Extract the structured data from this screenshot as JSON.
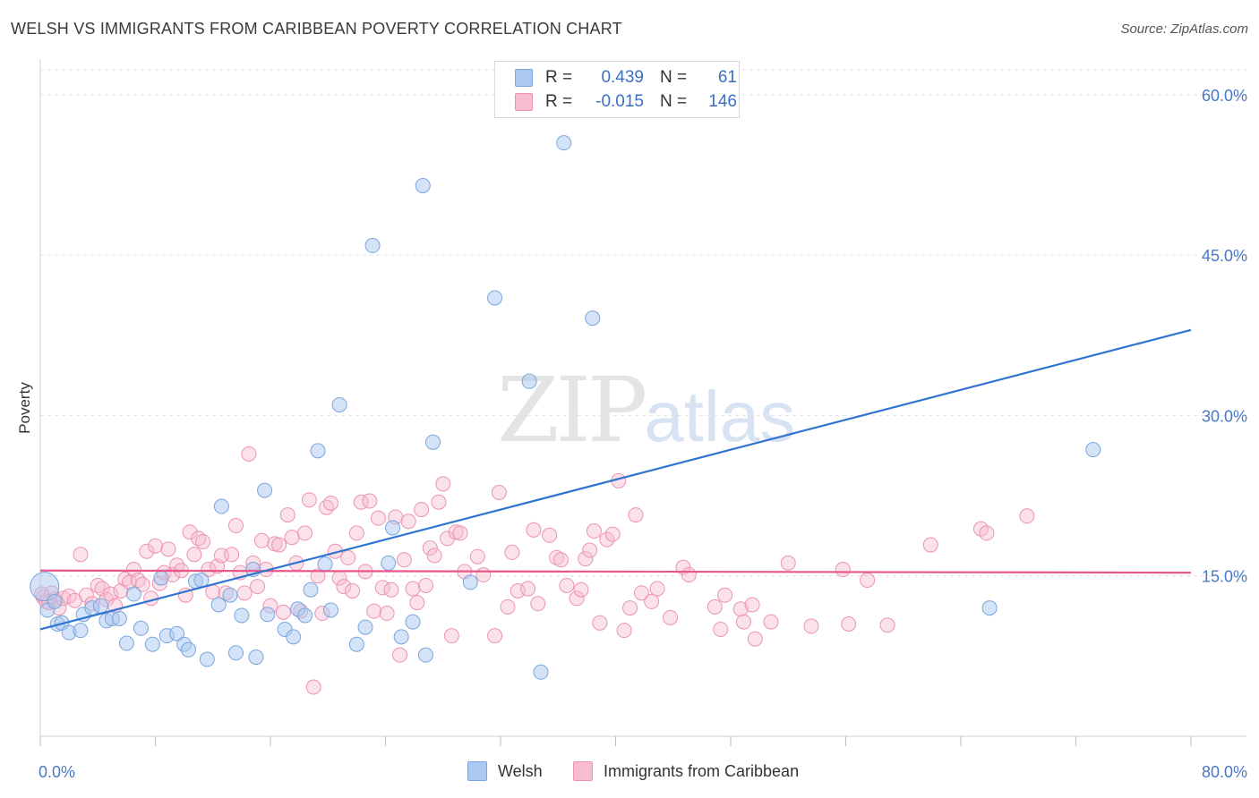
{
  "header": {
    "title": "WELSH VS IMMIGRANTS FROM CARIBBEAN POVERTY CORRELATION CHART",
    "source": "Source: ZipAtlas.com"
  },
  "watermark": {
    "zip": "ZIP",
    "atlas": "atlas"
  },
  "legend": {
    "welsh": {
      "r_label": "R =",
      "r_value": "0.439",
      "n_label": "N =",
      "n_value": "61"
    },
    "caribbean": {
      "r_label": "R =",
      "r_value": "-0.015",
      "n_label": "N =",
      "n_value": "146"
    }
  },
  "bottom_legend": {
    "welsh": "Welsh",
    "caribbean": "Immigrants from Caribbean"
  },
  "colors": {
    "welsh_fill": "#aac8f0",
    "welsh_stroke": "#7aa6de",
    "welsh_line": "#2f74d0",
    "caribbean_fill": "#f7bcd0",
    "caribbean_stroke": "#ec93b2",
    "caribbean_line": "#e8578c",
    "tick_text": "#4a78c4",
    "grid": "#e2e2e2"
  },
  "chart_data": {
    "type": "scatter",
    "title": "WELSH VS IMMIGRANTS FROM CARIBBEAN POVERTY CORRELATION CHART",
    "xlabel": "",
    "ylabel": "Poverty",
    "xlim": [
      0,
      80
    ],
    "ylim": [
      0,
      63
    ],
    "x_tick_labels": [
      "0.0%",
      "80.0%"
    ],
    "y_ticks": [
      15,
      30,
      45,
      60
    ],
    "y_tick_labels": [
      "15.0%",
      "30.0%",
      "45.0%",
      "60.0%"
    ],
    "grid": "horizontal dashed",
    "legend_position": "top-center",
    "series": [
      {
        "name": "Welsh",
        "R": 0.439,
        "N": 61,
        "trend": {
          "x": [
            0,
            80
          ],
          "y": [
            10.0,
            38.0
          ]
        },
        "points": [
          [
            0.3,
            14.0
          ],
          [
            0.5,
            11.8
          ],
          [
            1.2,
            10.5
          ],
          [
            1.5,
            10.6
          ],
          [
            2.0,
            9.7
          ],
          [
            2.8,
            9.9
          ],
          [
            3.0,
            11.4
          ],
          [
            3.6,
            12.0
          ],
          [
            4.2,
            12.2
          ],
          [
            4.6,
            10.8
          ],
          [
            5.0,
            11.0
          ],
          [
            5.5,
            11.0
          ],
          [
            6.0,
            8.7
          ],
          [
            6.5,
            13.3
          ],
          [
            7.0,
            10.1
          ],
          [
            7.8,
            8.6
          ],
          [
            8.4,
            14.8
          ],
          [
            8.8,
            9.4
          ],
          [
            9.5,
            9.6
          ],
          [
            10.0,
            8.6
          ],
          [
            10.3,
            8.1
          ],
          [
            10.8,
            14.5
          ],
          [
            11.2,
            14.6
          ],
          [
            11.6,
            7.2
          ],
          [
            12.4,
            12.3
          ],
          [
            12.6,
            21.5
          ],
          [
            13.2,
            13.2
          ],
          [
            13.6,
            7.8
          ],
          [
            14.0,
            11.3
          ],
          [
            14.8,
            15.6
          ],
          [
            15.0,
            7.4
          ],
          [
            15.6,
            23.0
          ],
          [
            15.8,
            11.4
          ],
          [
            17.0,
            10.0
          ],
          [
            17.6,
            9.3
          ],
          [
            17.9,
            11.9
          ],
          [
            18.4,
            11.3
          ],
          [
            18.8,
            13.7
          ],
          [
            19.3,
            26.7
          ],
          [
            19.8,
            16.1
          ],
          [
            20.2,
            11.8
          ],
          [
            20.8,
            31.0
          ],
          [
            22.0,
            8.6
          ],
          [
            22.6,
            10.2
          ],
          [
            23.1,
            45.9
          ],
          [
            24.2,
            16.2
          ],
          [
            24.5,
            19.5
          ],
          [
            25.1,
            9.3
          ],
          [
            25.9,
            10.7
          ],
          [
            26.6,
            51.5
          ],
          [
            26.8,
            7.6
          ],
          [
            27.3,
            27.5
          ],
          [
            29.9,
            14.4
          ],
          [
            31.6,
            41.0
          ],
          [
            34.0,
            33.2
          ],
          [
            34.8,
            6.0
          ],
          [
            36.4,
            55.5
          ],
          [
            38.4,
            39.1
          ],
          [
            66.0,
            12.0
          ],
          [
            73.2,
            26.8
          ],
          [
            1.0,
            12.6
          ]
        ]
      },
      {
        "name": "Immigrants from Caribbean",
        "R": -0.015,
        "N": 146,
        "trend": {
          "x": [
            0,
            80
          ],
          "y": [
            15.5,
            15.3
          ]
        },
        "points": [
          [
            0.2,
            13.0
          ],
          [
            0.4,
            12.6
          ],
          [
            0.6,
            12.5
          ],
          [
            0.8,
            13.4
          ],
          [
            1.0,
            12.8
          ],
          [
            1.3,
            12.0
          ],
          [
            1.6,
            12.9
          ],
          [
            2.0,
            13.1
          ],
          [
            2.4,
            12.7
          ],
          [
            2.8,
            17.0
          ],
          [
            3.2,
            13.2
          ],
          [
            3.6,
            12.4
          ],
          [
            4.0,
            14.1
          ],
          [
            4.3,
            13.8
          ],
          [
            4.6,
            12.8
          ],
          [
            4.9,
            13.3
          ],
          [
            5.2,
            12.2
          ],
          [
            5.6,
            13.6
          ],
          [
            5.9,
            14.7
          ],
          [
            6.2,
            14.4
          ],
          [
            6.5,
            15.6
          ],
          [
            6.8,
            14.6
          ],
          [
            7.1,
            14.2
          ],
          [
            7.4,
            17.3
          ],
          [
            7.7,
            12.9
          ],
          [
            8.0,
            17.8
          ],
          [
            8.3,
            14.3
          ],
          [
            8.6,
            15.3
          ],
          [
            8.9,
            17.5
          ],
          [
            9.2,
            15.1
          ],
          [
            9.5,
            16.0
          ],
          [
            9.8,
            15.5
          ],
          [
            10.1,
            13.2
          ],
          [
            10.4,
            19.1
          ],
          [
            10.7,
            17.0
          ],
          [
            11.0,
            18.5
          ],
          [
            11.3,
            18.2
          ],
          [
            11.7,
            15.6
          ],
          [
            12.0,
            13.5
          ],
          [
            12.3,
            15.9
          ],
          [
            12.6,
            16.9
          ],
          [
            12.9,
            13.4
          ],
          [
            13.3,
            17.0
          ],
          [
            13.6,
            19.7
          ],
          [
            13.9,
            15.3
          ],
          [
            14.2,
            13.4
          ],
          [
            14.5,
            26.4
          ],
          [
            14.8,
            16.2
          ],
          [
            15.1,
            14.0
          ],
          [
            15.4,
            18.3
          ],
          [
            15.7,
            15.6
          ],
          [
            16.0,
            12.2
          ],
          [
            16.3,
            18.0
          ],
          [
            16.6,
            17.9
          ],
          [
            16.9,
            11.6
          ],
          [
            17.2,
            20.7
          ],
          [
            17.5,
            18.6
          ],
          [
            17.8,
            16.2
          ],
          [
            18.1,
            11.7
          ],
          [
            18.4,
            19.0
          ],
          [
            18.7,
            22.1
          ],
          [
            19.0,
            4.6
          ],
          [
            19.3,
            15.0
          ],
          [
            19.6,
            11.5
          ],
          [
            19.9,
            21.4
          ],
          [
            20.2,
            21.8
          ],
          [
            20.5,
            17.3
          ],
          [
            20.8,
            14.8
          ],
          [
            21.1,
            14.0
          ],
          [
            21.4,
            16.7
          ],
          [
            21.7,
            13.6
          ],
          [
            22.0,
            19.0
          ],
          [
            22.3,
            21.9
          ],
          [
            22.6,
            15.4
          ],
          [
            22.9,
            22.0
          ],
          [
            23.2,
            11.7
          ],
          [
            23.5,
            20.4
          ],
          [
            23.8,
            13.9
          ],
          [
            24.1,
            11.5
          ],
          [
            24.4,
            13.7
          ],
          [
            24.7,
            20.5
          ],
          [
            25.0,
            7.6
          ],
          [
            25.3,
            16.5
          ],
          [
            25.6,
            20.1
          ],
          [
            25.9,
            13.8
          ],
          [
            26.2,
            12.5
          ],
          [
            26.5,
            21.2
          ],
          [
            26.8,
            14.1
          ],
          [
            27.1,
            17.6
          ],
          [
            27.4,
            16.9
          ],
          [
            27.7,
            21.9
          ],
          [
            28.0,
            23.6
          ],
          [
            28.3,
            18.5
          ],
          [
            28.6,
            9.4
          ],
          [
            28.9,
            19.1
          ],
          [
            29.2,
            19.0
          ],
          [
            29.5,
            15.4
          ],
          [
            30.4,
            16.8
          ],
          [
            30.8,
            15.1
          ],
          [
            31.6,
            9.4
          ],
          [
            31.9,
            22.8
          ],
          [
            32.5,
            12.1
          ],
          [
            32.8,
            17.2
          ],
          [
            33.2,
            13.6
          ],
          [
            33.9,
            13.8
          ],
          [
            34.3,
            19.3
          ],
          [
            34.6,
            12.4
          ],
          [
            35.4,
            18.8
          ],
          [
            35.9,
            16.7
          ],
          [
            36.2,
            16.5
          ],
          [
            36.6,
            14.1
          ],
          [
            37.3,
            12.9
          ],
          [
            37.6,
            13.7
          ],
          [
            37.9,
            16.6
          ],
          [
            38.2,
            17.4
          ],
          [
            38.5,
            19.2
          ],
          [
            38.9,
            10.6
          ],
          [
            39.4,
            18.4
          ],
          [
            39.8,
            18.9
          ],
          [
            40.2,
            23.9
          ],
          [
            40.6,
            9.9
          ],
          [
            41.0,
            12.0
          ],
          [
            41.4,
            20.7
          ],
          [
            41.8,
            13.4
          ],
          [
            42.5,
            12.6
          ],
          [
            42.9,
            13.8
          ],
          [
            43.8,
            11.1
          ],
          [
            44.7,
            15.8
          ],
          [
            45.1,
            15.1
          ],
          [
            46.9,
            12.1
          ],
          [
            47.3,
            10.0
          ],
          [
            47.6,
            13.2
          ],
          [
            48.7,
            11.9
          ],
          [
            48.9,
            10.7
          ],
          [
            49.5,
            12.3
          ],
          [
            49.7,
            9.1
          ],
          [
            50.8,
            10.7
          ],
          [
            52.0,
            16.2
          ],
          [
            53.6,
            10.3
          ],
          [
            55.8,
            15.6
          ],
          [
            56.2,
            10.5
          ],
          [
            57.5,
            14.6
          ],
          [
            58.9,
            10.4
          ],
          [
            61.9,
            17.9
          ],
          [
            65.4,
            19.4
          ],
          [
            65.8,
            19.0
          ],
          [
            68.6,
            20.6
          ],
          [
            0.1,
            13.3
          ]
        ]
      }
    ]
  }
}
